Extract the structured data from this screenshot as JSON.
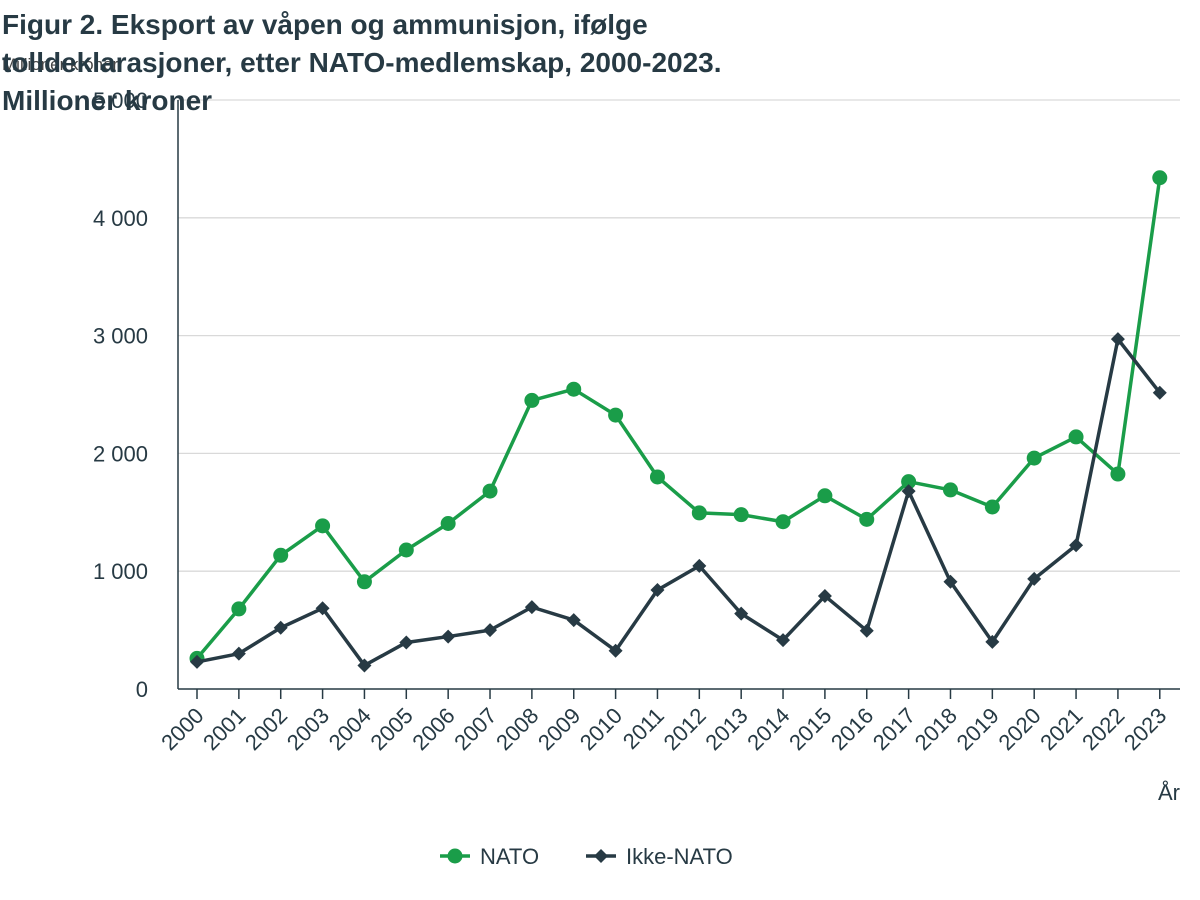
{
  "chart_data": {
    "type": "line",
    "title_lines": [
      "Figur 2. Eksport av våpen og ammunisjon, ifølge",
      "tolldeklarasjoner, etter NATO-medlemskap, 2000-2023.",
      "Millioner kroner"
    ],
    "ylabel": "Millioner kroner",
    "xlabel": "År",
    "categories": [
      "2000",
      "2001",
      "2002",
      "2003",
      "2004",
      "2005",
      "2006",
      "2007",
      "2008",
      "2009",
      "2010",
      "2011",
      "2012",
      "2013",
      "2014",
      "2015",
      "2016",
      "2017",
      "2018",
      "2019",
      "2020",
      "2021",
      "2022",
      "2023"
    ],
    "ylim": [
      0,
      5000
    ],
    "yticks": [
      0,
      1000,
      2000,
      3000,
      4000,
      5000
    ],
    "ytick_labels": [
      "0",
      "1 000",
      "2 000",
      "3 000",
      "4 000",
      "5 000"
    ],
    "grid": true,
    "legend_position": "bottom",
    "series": [
      {
        "name": "NATO",
        "color": "#1a9d49",
        "marker": "circle",
        "values": [
          260,
          680,
          1135,
          1385,
          910,
          1180,
          1405,
          1680,
          2450,
          2545,
          2325,
          1800,
          1495,
          1480,
          1420,
          1640,
          1440,
          1760,
          1690,
          1545,
          1960,
          2140,
          1825,
          4340
        ]
      },
      {
        "name": "Ikke-NATO",
        "color": "#273a44",
        "marker": "diamond",
        "values": [
          230,
          300,
          520,
          685,
          200,
          395,
          445,
          500,
          695,
          585,
          325,
          840,
          1045,
          640,
          415,
          790,
          495,
          1680,
          910,
          400,
          935,
          1220,
          2970,
          2515
        ]
      }
    ]
  }
}
